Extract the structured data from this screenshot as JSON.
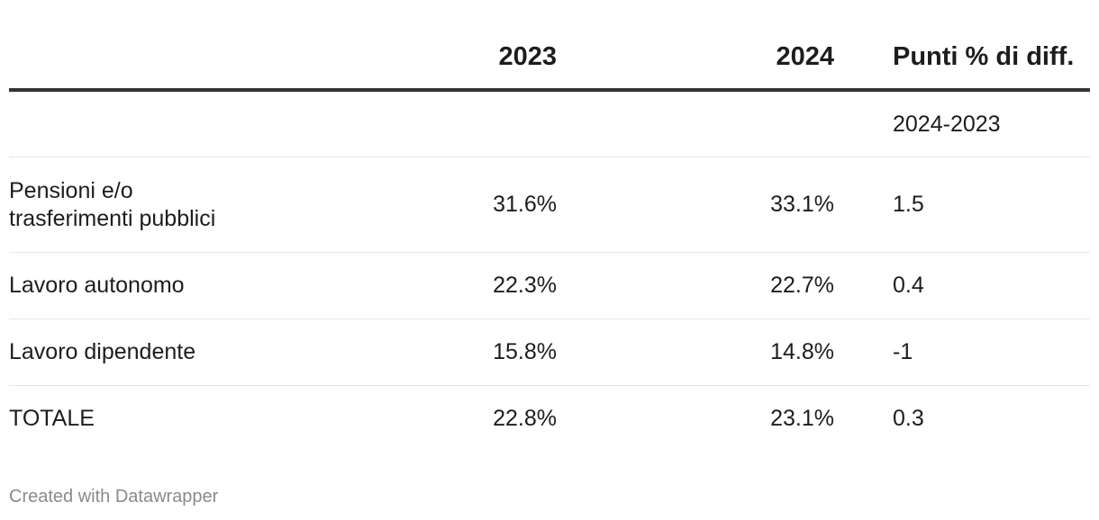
{
  "chart_data": {
    "type": "table",
    "columns": [
      "",
      "2023",
      "2024",
      "Punti % di diff."
    ],
    "subheader": [
      "",
      "",
      "",
      "2024-2023"
    ],
    "rows": [
      {
        "label": "Pensioni e/o trasferimenti pubblici",
        "label_lines": [
          "Pensioni e/o",
          "trasferimenti pubblici"
        ],
        "v2023": "31.6%",
        "v2024": "33.1%",
        "diff": "1.5"
      },
      {
        "label": "Lavoro autonomo",
        "label_lines": [
          "Lavoro autonomo"
        ],
        "v2023": "22.3%",
        "v2024": "22.7%",
        "diff": "0.4"
      },
      {
        "label": "Lavoro dipendente",
        "label_lines": [
          "Lavoro dipendente"
        ],
        "v2023": "15.8%",
        "v2024": "14.8%",
        "diff": "-1"
      },
      {
        "label": "TOTALE",
        "label_lines": [
          "TOTALE"
        ],
        "v2023": "22.8%",
        "v2024": "23.1%",
        "diff": "0.3"
      }
    ]
  },
  "footer": {
    "credit": "Created with Datawrapper"
  }
}
